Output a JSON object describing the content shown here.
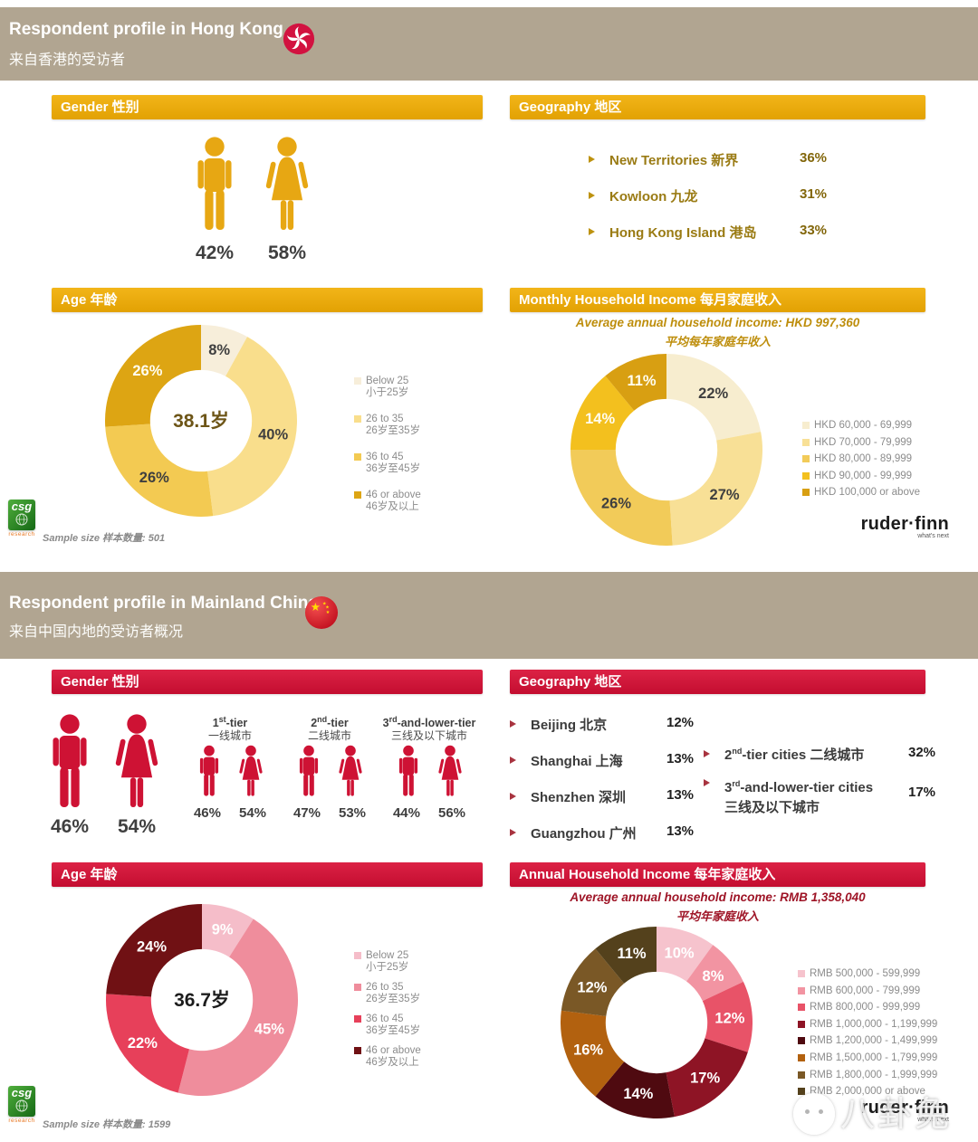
{
  "hk": {
    "title_en": "Respondent profile in Hong Kong",
    "title_zh": "来自香港的受访者",
    "gender": {
      "header": "Gender 性别",
      "male_pct": "42%",
      "female_pct": "58%"
    },
    "geography": {
      "header": "Geography 地区",
      "items": [
        {
          "label": "New Territories 新界",
          "value": "36%"
        },
        {
          "label": "Kowloon 九龙",
          "value": "31%"
        },
        {
          "label": "Hong Kong Island 港岛",
          "value": "33%"
        }
      ]
    },
    "age": {
      "header": "Age 年龄"
    },
    "income": {
      "header": "Monthly Household Income 每月家庭收入"
    },
    "sample": "Sample size 样本数量: 501"
  },
  "cn": {
    "title_en": "Respondent profile in Mainland China",
    "title_zh": "来自中国内地的受访者概况",
    "gender": {
      "header": "Gender 性别",
      "male_pct": "46%",
      "female_pct": "54%",
      "tiers": [
        {
          "num": "1",
          "sup": "st",
          "rest": "-tier",
          "zh": "一线城市",
          "male": "46%",
          "female": "54%"
        },
        {
          "num": "2",
          "sup": "nd",
          "rest": "-tier",
          "zh": "二线城市",
          "male": "47%",
          "female": "53%"
        },
        {
          "num": "3",
          "sup": "rd",
          "rest": "-and-lower-tier",
          "zh": "三线及以下城市",
          "male": "44%",
          "female": "56%"
        }
      ]
    },
    "geography": {
      "header": "Geography 地区",
      "cities": [
        {
          "label": "Beijing 北京",
          "value": "12%"
        },
        {
          "label": "Shanghai 上海",
          "value": "13%"
        },
        {
          "label": "Shenzhen 深圳",
          "value": "13%"
        },
        {
          "label": "Guangzhou 广州",
          "value": "13%"
        }
      ],
      "tiers": [
        {
          "num": "2",
          "sup": "nd",
          "rest": "-tier cities 二线城市",
          "value": "32%"
        },
        {
          "num": "3",
          "sup": "rd",
          "rest": "-and-lower-tier cities",
          "line2": "三线及以下城市",
          "value": "17%"
        }
      ]
    },
    "age": {
      "header": "Age 年龄"
    },
    "income": {
      "header": "Annual Household Income 每年家庭收入"
    },
    "sample": "Sample size 样本数量: 1599"
  },
  "chart_data": [
    {
      "id": "hk_age",
      "type": "pie",
      "title": "Age 年龄",
      "center_label": "38.1岁",
      "center_color": "#6d5517",
      "values": [
        8,
        40,
        26,
        26
      ],
      "colors": [
        "#f7eeda",
        "#f9de8c",
        "#f3ca52",
        "#dda513"
      ],
      "label_colors": [
        "#3f3f3f",
        "#3f3f3f",
        "#3f3f3f",
        "#fffdf0"
      ],
      "legend": [
        {
          "en": "Below 25",
          "zh": "小于25岁"
        },
        {
          "en": "26 to 35",
          "zh": "26岁至35岁"
        },
        {
          "en": "36 to 45",
          "zh": "36岁至45岁"
        },
        {
          "en": "46 or above",
          "zh": "46岁及以上"
        }
      ],
      "legend_position": "right"
    },
    {
      "id": "hk_income",
      "type": "pie",
      "title": "Monthly Household Income 每月家庭收入",
      "subtitle_en": "Average annual household income: HKD 997,360",
      "subtitle_zh": "平均每年家庭年收入",
      "values": [
        22,
        27,
        26,
        14,
        11
      ],
      "colors": [
        "#f7edcf",
        "#f8e096",
        "#f2cb59",
        "#f3c01e",
        "#d89f12"
      ],
      "label_colors": [
        "#3f3f3f",
        "#3f3f3f",
        "#3f3f3f",
        "#fffdf0",
        "#fffdf0"
      ],
      "legend": [
        {
          "en": "HKD 60,000 - 69,999"
        },
        {
          "en": "HKD 70,000 - 79,999"
        },
        {
          "en": "HKD 80,000 - 89,999"
        },
        {
          "en": "HKD 90,000 - 99,999"
        },
        {
          "en": "HKD 100,000 or above"
        }
      ],
      "legend_position": "right"
    },
    {
      "id": "cn_age",
      "type": "pie",
      "title": "Age 年龄",
      "center_label": "36.7岁",
      "center_color": "#1c1c1c",
      "values": [
        9,
        45,
        22,
        24
      ],
      "colors": [
        "#f5bdc9",
        "#ef8d9c",
        "#e7405a",
        "#701114"
      ],
      "label_colors": [
        "#ffffff",
        "#ffffff",
        "#ffffff",
        "#ffffff"
      ],
      "legend": [
        {
          "en": "Below 25",
          "zh": "小于25岁"
        },
        {
          "en": "26 to 35",
          "zh": "26岁至35岁"
        },
        {
          "en": "36 to 45",
          "zh": "36岁至45岁"
        },
        {
          "en": "46 or above",
          "zh": "46岁及以上"
        }
      ],
      "legend_position": "right"
    },
    {
      "id": "cn_income",
      "type": "pie",
      "title": "Annual Household Income 每年家庭收入",
      "subtitle_en": "Average annual household income: RMB 1,358,040",
      "subtitle_zh": "平均年家庭收入",
      "values": [
        10,
        8,
        12,
        17,
        14,
        16,
        12,
        11
      ],
      "colors": [
        "#f6c3cd",
        "#f294a2",
        "#e85368",
        "#8e1425",
        "#4f0a10",
        "#b2610f",
        "#7a5826",
        "#54411c"
      ],
      "label_colors": [
        "#ffffff",
        "#ffffff",
        "#ffffff",
        "#ffffff",
        "#ffffff",
        "#ffffff",
        "#ffffff",
        "#ffffff"
      ],
      "legend": [
        {
          "en": "RMB 500,000 - 599,999"
        },
        {
          "en": "RMB 600,000 - 799,999"
        },
        {
          "en": "RMB 800,000 - 999,999"
        },
        {
          "en": "RMB 1,000,000 - 1,199,999"
        },
        {
          "en": "RMB 1,200,000 - 1,499,999"
        },
        {
          "en": "RMB 1,500,000 - 1,799,999"
        },
        {
          "en": "RMB 1,800,000 - 1,999,999"
        },
        {
          "en": "RMB 2,000,000 or above"
        }
      ],
      "legend_position": "right"
    }
  ],
  "brand": {
    "ruderfinn": "ruder·finn",
    "tagline": "what's next",
    "csg": "csg",
    "csg_sub": "research"
  },
  "watermark": "八卦兔"
}
